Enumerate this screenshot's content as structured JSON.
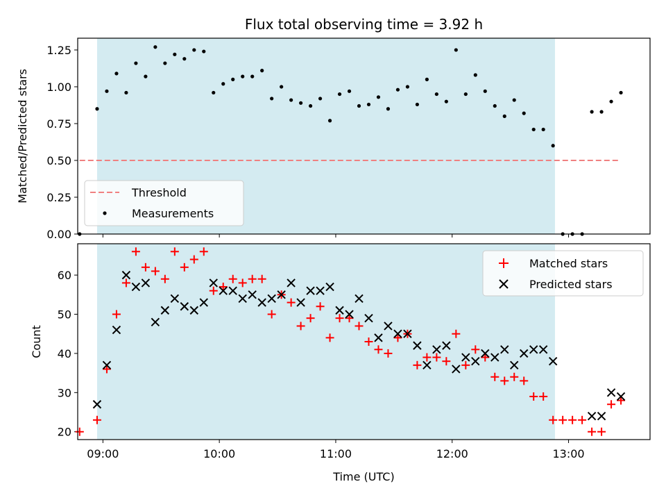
{
  "chart_data": [
    {
      "type": "scatter",
      "title": "Flux total observing time = 3.92 h",
      "xlabel": "",
      "ylabel": "Matched/Predicted stars",
      "ylim": [
        0,
        1.33
      ],
      "yticks": [
        "0.00",
        "0.25",
        "0.50",
        "0.75",
        "1.00",
        "1.25"
      ],
      "xlim": [
        "08:47",
        "13:42"
      ],
      "shaded_span": [
        "08:57",
        "12:53"
      ],
      "shaded_color": "#d4ebf1",
      "threshold": {
        "name": "Threshold",
        "value": 0.5,
        "x": [
          "08:48",
          "13:26"
        ],
        "color": "#f08080"
      },
      "series": [
        {
          "name": "Measurements",
          "color": "#000000",
          "x": [
            "08:48",
            "08:57",
            "09:02",
            "09:07",
            "09:12",
            "09:17",
            "09:22",
            "09:27",
            "09:32",
            "09:37",
            "09:42",
            "09:47",
            "09:52",
            "09:57",
            "10:02",
            "10:07",
            "10:12",
            "10:17",
            "10:22",
            "10:27",
            "10:32",
            "10:37",
            "10:42",
            "10:47",
            "10:52",
            "10:57",
            "11:02",
            "11:07",
            "11:12",
            "11:17",
            "11:22",
            "11:27",
            "11:32",
            "11:37",
            "11:42",
            "11:47",
            "11:52",
            "11:57",
            "12:02",
            "12:07",
            "12:12",
            "12:17",
            "12:22",
            "12:27",
            "12:32",
            "12:37",
            "12:42",
            "12:47",
            "12:52",
            "12:57",
            "13:02",
            "13:07",
            "13:12",
            "13:17",
            "13:22",
            "13:27"
          ],
          "y": [
            0.0,
            0.85,
            0.97,
            1.09,
            0.96,
            1.16,
            1.07,
            1.27,
            1.16,
            1.22,
            1.19,
            1.25,
            1.24,
            0.96,
            1.02,
            1.05,
            1.07,
            1.07,
            1.11,
            0.92,
            1.0,
            0.91,
            0.89,
            0.87,
            0.92,
            0.77,
            0.95,
            0.97,
            0.87,
            0.88,
            0.93,
            0.85,
            0.98,
            1.0,
            0.88,
            1.05,
            0.95,
            0.9,
            1.25,
            0.95,
            1.08,
            0.97,
            0.87,
            0.8,
            0.91,
            0.82,
            0.71,
            0.71,
            0.6,
            0.0,
            0.0,
            0.0,
            0.83,
            0.83,
            0.9,
            0.96
          ]
        }
      ],
      "legend_position": "lower-left"
    },
    {
      "type": "scatter",
      "title": "",
      "xlabel": "Time (UTC)",
      "ylabel": "Count",
      "ylim": [
        18,
        68
      ],
      "yticks": [
        "20",
        "30",
        "40",
        "50",
        "60"
      ],
      "xticks": [
        "09:00",
        "10:00",
        "11:00",
        "12:00",
        "13:00"
      ],
      "xlim": [
        "08:47",
        "13:42"
      ],
      "shaded_span": [
        "08:57",
        "12:53"
      ],
      "series": [
        {
          "name": "Matched stars",
          "marker": "plus",
          "color": "#ff0000",
          "x": [
            "08:48",
            "08:57",
            "09:02",
            "09:07",
            "09:12",
            "09:17",
            "09:22",
            "09:27",
            "09:32",
            "09:37",
            "09:42",
            "09:47",
            "09:52",
            "09:57",
            "10:02",
            "10:07",
            "10:12",
            "10:17",
            "10:22",
            "10:27",
            "10:32",
            "10:37",
            "10:42",
            "10:47",
            "10:52",
            "10:57",
            "11:02",
            "11:07",
            "11:12",
            "11:17",
            "11:22",
            "11:27",
            "11:32",
            "11:37",
            "11:42",
            "11:47",
            "11:52",
            "11:57",
            "12:02",
            "12:07",
            "12:12",
            "12:17",
            "12:22",
            "12:27",
            "12:32",
            "12:37",
            "12:42",
            "12:47",
            "12:52",
            "12:57",
            "13:02",
            "13:07",
            "13:12",
            "13:17",
            "13:22",
            "13:27"
          ],
          "y": [
            20,
            23,
            36,
            50,
            58,
            66,
            62,
            61,
            59,
            66,
            62,
            64,
            66,
            56,
            57,
            59,
            58,
            59,
            59,
            50,
            55,
            53,
            47,
            49,
            52,
            44,
            49,
            49,
            47,
            43,
            41,
            40,
            44,
            45,
            37,
            39,
            39,
            38,
            45,
            37,
            41,
            39,
            34,
            33,
            34,
            33,
            29,
            29,
            23,
            23,
            23,
            23,
            20,
            20,
            27,
            28
          ]
        },
        {
          "name": "Predicted stars",
          "marker": "x",
          "color": "#000000",
          "x": [
            "08:57",
            "09:02",
            "09:07",
            "09:12",
            "09:17",
            "09:22",
            "09:27",
            "09:32",
            "09:37",
            "09:42",
            "09:47",
            "09:52",
            "09:57",
            "10:02",
            "10:07",
            "10:12",
            "10:17",
            "10:22",
            "10:27",
            "10:32",
            "10:37",
            "10:42",
            "10:47",
            "10:52",
            "10:57",
            "11:02",
            "11:07",
            "11:12",
            "11:17",
            "11:22",
            "11:27",
            "11:32",
            "11:37",
            "11:42",
            "11:47",
            "11:52",
            "11:57",
            "12:02",
            "12:07",
            "12:12",
            "12:17",
            "12:22",
            "12:27",
            "12:32",
            "12:37",
            "12:42",
            "12:47",
            "12:52",
            "13:12",
            "13:17",
            "13:22",
            "13:27"
          ],
          "y": [
            27,
            37,
            46,
            60,
            57,
            58,
            48,
            51,
            54,
            52,
            51,
            53,
            58,
            56,
            56,
            54,
            55,
            53,
            54,
            55,
            58,
            53,
            56,
            56,
            57,
            51,
            50,
            54,
            49,
            44,
            47,
            45,
            45,
            42,
            37,
            41,
            42,
            36,
            39,
            38,
            40,
            39,
            41,
            37,
            40,
            41,
            41,
            38,
            24,
            24,
            30,
            29
          ]
        }
      ],
      "legend_position": "upper-right"
    }
  ]
}
